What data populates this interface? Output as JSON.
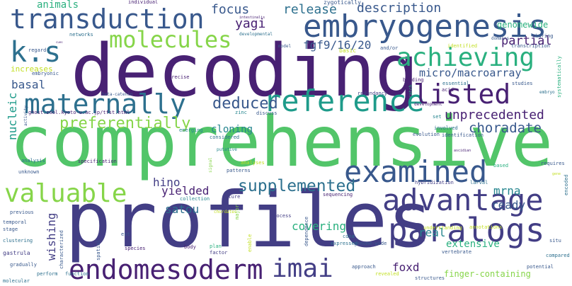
{
  "words": [
    {
      "text": "decoding",
      "color": "#482173"
    },
    {
      "text": "comprehensive",
      "color": "#52c569"
    },
    {
      "text": "profiles",
      "color": "#433e85"
    },
    {
      "text": "embryogenesis",
      "color": "#38588c"
    },
    {
      "text": "transduction",
      "color": "#38588c"
    },
    {
      "text": "reference",
      "color": "#1e9b8a"
    },
    {
      "text": "maternally",
      "color": "#2d708e"
    },
    {
      "text": "paralogs",
      "color": "#433e85"
    },
    {
      "text": "advantage",
      "color": "#433e85"
    },
    {
      "text": "examined",
      "color": "#38588c"
    },
    {
      "text": "endomesoderm",
      "color": "#482173"
    },
    {
      "text": "valuable",
      "color": "#86d549"
    },
    {
      "text": "molecules",
      "color": "#86d549"
    },
    {
      "text": "achieving",
      "color": "#2ab07f"
    },
    {
      "text": "listed",
      "color": "#482173"
    },
    {
      "text": "k.s",
      "color": "#2d708e"
    },
    {
      "text": "imai",
      "color": "#433e85"
    },
    {
      "text": "supplemented",
      "color": "#2d708e"
    },
    {
      "text": "deduced",
      "color": "#38588c"
    },
    {
      "text": "preferentially",
      "color": "#86d549"
    },
    {
      "text": "unprecedented",
      "color": "#482173"
    },
    {
      "text": "choradate",
      "color": "#38588c"
    },
    {
      "text": "fgf9/16/20",
      "color": "#38588c"
    },
    {
      "text": "micro/macroarray",
      "color": "#38588c"
    },
    {
      "text": "partial",
      "color": "#482173"
    },
    {
      "text": "focus",
      "color": "#38588c"
    },
    {
      "text": "release",
      "color": "#2d708e"
    },
    {
      "text": "description",
      "color": "#38588c"
    },
    {
      "text": "animals",
      "color": "#2ab07f"
    },
    {
      "text": "yagi",
      "color": "#482173"
    },
    {
      "text": "genomewide",
      "color": "#2ab07f"
    },
    {
      "text": "basal",
      "color": "#38588c"
    },
    {
      "text": "cloning",
      "color": "#25858e"
    },
    {
      "text": "hino",
      "color": "#433e85"
    },
    {
      "text": "yielded",
      "color": "#482173"
    },
    {
      "text": "satou",
      "color": "#2d708e"
    },
    {
      "text": "mrna",
      "color": "#25858e"
    },
    {
      "text": "ready",
      "color": "#38588c"
    },
    {
      "text": "covering",
      "color": "#2ab07f"
    },
    {
      "text": "real",
      "color": "#25858e"
    },
    {
      "text": "extensive",
      "color": "#2ab07f"
    },
    {
      "text": "foxd",
      "color": "#482173"
    },
    {
      "text": "wishing",
      "color": "#433e85"
    },
    {
      "text": "finger-containing",
      "color": "#86d549"
    },
    {
      "text": "nucleic",
      "color": "#1e9b8a"
    },
    {
      "text": "increases",
      "color": "#c2df23"
    },
    {
      "text": "basic",
      "color": "#c2df23"
    },
    {
      "text": "ghost.zool.kyoto-u.ac.jp/tfst.html",
      "color": "#482173"
    },
    {
      "text": "zygotically",
      "color": "#38588c"
    },
    {
      "text": "individual",
      "color": "#482173"
    },
    {
      "text": "intestinalis",
      "color": "#482173"
    },
    {
      "text": "model",
      "color": "#38588c"
    },
    {
      "text": "and/or",
      "color": "#38588c"
    },
    {
      "text": "identified",
      "color": "#c2df23"
    },
    {
      "text": "transcription",
      "color": "#38588c"
    },
    {
      "text": "systematically",
      "color": "#2ab07f"
    },
    {
      "text": "sharing",
      "color": "#38588c"
    },
    {
      "text": "domains",
      "color": "#38588c"
    },
    {
      "text": "regard",
      "color": "#38588c"
    },
    {
      "text": "networks",
      "color": "#2d708e"
    },
    {
      "text": "developmental",
      "color": "#2d708e"
    },
    {
      "text": "cues",
      "color": "#482173"
    },
    {
      "text": "embryonic",
      "color": "#38588c"
    },
    {
      "text": "beta-catenin",
      "color": "#38588c"
    },
    {
      "text": "precise",
      "color": "#482173"
    },
    {
      "text": "redundancy",
      "color": "#433e85"
    },
    {
      "text": "binding",
      "color": "#482173"
    },
    {
      "text": "essential",
      "color": "#2d708e"
    },
    {
      "text": "studies",
      "color": "#38588c"
    },
    {
      "text": "acid",
      "color": "#482173"
    },
    {
      "text": "embryo",
      "color": "#2d708e"
    },
    {
      "text": "catch",
      "color": "#2ab07f"
    },
    {
      "text": "development",
      "color": "#482173"
    },
    {
      "text": "activity",
      "color": "#38588c"
    },
    {
      "text": "zinc",
      "color": "#25858e"
    },
    {
      "text": "discuss",
      "color": "#38588c"
    },
    {
      "text": "set",
      "color": "#25858e"
    },
    {
      "text": "emerging",
      "color": "#25858e"
    },
    {
      "text": "considered",
      "color": "#2d708e"
    },
    {
      "text": "evolution",
      "color": "#38588c"
    },
    {
      "text": "involved",
      "color": "#2d708e"
    },
    {
      "text": "identification",
      "color": "#38588c"
    },
    {
      "text": "ascidian",
      "color": "#482173"
    },
    {
      "text": "putative",
      "color": "#25858e"
    },
    {
      "text": "analysis",
      "color": "#2d708e"
    },
    {
      "text": "signal",
      "color": "#86d549"
    },
    {
      "text": "analyses",
      "color": "#c2df23"
    },
    {
      "text": "patterns",
      "color": "#38588c"
    },
    {
      "text": "based",
      "color": "#2ab07f"
    },
    {
      "text": "requires",
      "color": "#38588c"
    },
    {
      "text": "gene",
      "color": "#c2df23"
    },
    {
      "text": "encoded",
      "color": "#2d708e"
    },
    {
      "text": "specification",
      "color": "#482173"
    },
    {
      "text": "unknown",
      "color": "#38588c"
    },
    {
      "text": "collection",
      "color": "#25858e"
    },
    {
      "text": "future",
      "color": "#433e85"
    },
    {
      "text": "sequencing",
      "color": "#482173"
    },
    {
      "text": "hybridization",
      "color": "#433e85"
    },
    {
      "text": "larval",
      "color": "#2d708e"
    },
    {
      "text": "previous",
      "color": "#38588c"
    },
    {
      "text": "temporal",
      "color": "#38588c"
    },
    {
      "text": "chordates",
      "color": "#c2df23"
    },
    {
      "text": "major",
      "color": "#86d549"
    },
    {
      "text": "understanding",
      "color": "#c2df23"
    },
    {
      "text": "annotations",
      "color": "#c2df23"
    },
    {
      "text": "stage",
      "color": "#38588c"
    },
    {
      "text": "process",
      "color": "#433e85"
    },
    {
      "text": "cdna",
      "color": "#2d708e"
    },
    {
      "text": "situ",
      "color": "#38588c"
    },
    {
      "text": "clustering",
      "color": "#2d708e"
    },
    {
      "text": "est",
      "color": "#38588c"
    },
    {
      "text": "vertebrate",
      "color": "#38588c"
    },
    {
      "text": "compared",
      "color": "#2d708e"
    },
    {
      "text": "characterized",
      "color": "#38588c"
    },
    {
      "text": "species",
      "color": "#482173"
    },
    {
      "text": "plan",
      "color": "#2ab07f"
    },
    {
      "text": "enable",
      "color": "#c2df23"
    },
    {
      "text": "dependence",
      "color": "#38588c"
    },
    {
      "text": "expressed",
      "color": "#2d708e"
    },
    {
      "text": "genome-wide",
      "color": "#38588c"
    },
    {
      "text": "gastrula",
      "color": "#433e85"
    },
    {
      "text": "body",
      "color": "#482173"
    },
    {
      "text": "spatial",
      "color": "#38588c"
    },
    {
      "text": "factor",
      "color": "#433e85"
    },
    {
      "text": "potential",
      "color": "#38588c"
    },
    {
      "text": "gradually",
      "color": "#38588c"
    },
    {
      "text": "approach",
      "color": "#38588c"
    },
    {
      "text": "perform",
      "color": "#2d708e"
    },
    {
      "text": "function",
      "color": "#2d708e"
    },
    {
      "text": "revealed",
      "color": "#c2df23"
    },
    {
      "text": "molecular",
      "color": "#2d708e"
    },
    {
      "text": "structures",
      "color": "#38588c"
    }
  ]
}
